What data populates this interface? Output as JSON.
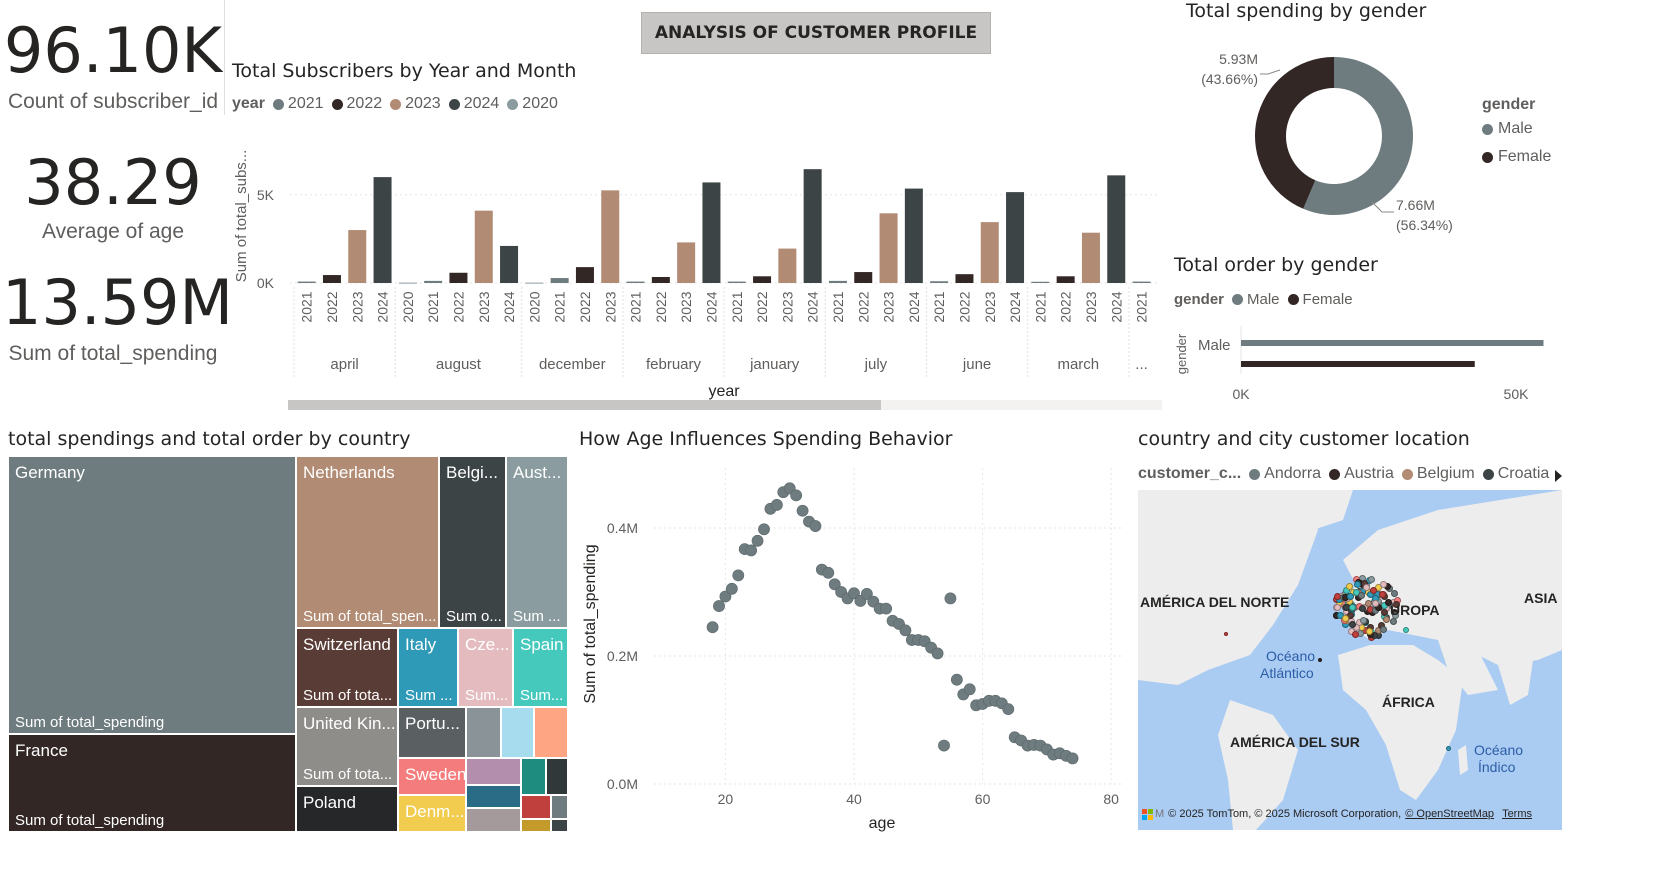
{
  "header": {
    "title": "ANALYSIS OF CUSTOMER PROFILE"
  },
  "kpis": [
    {
      "value": "96.10K",
      "label": "Count of subscriber_id"
    },
    {
      "value": "38.29",
      "label": "Average of age"
    },
    {
      "value": "13.59M",
      "label": "Sum of total_spending"
    }
  ],
  "colors": {
    "y2021": "#6e7b7f",
    "y2022": "#322725",
    "y2023": "#b18b73",
    "y2024": "#3d4446",
    "y2020": "#8a9ca0",
    "male": "#6e7b7f",
    "female": "#322725"
  },
  "subscribers_chart": {
    "title": "Total Subscribers by Year and Month",
    "legend_title": "year",
    "legend": [
      "2021",
      "2022",
      "2023",
      "2024",
      "2020"
    ],
    "ylabel": "Sum of total_subs...",
    "xlabel": "year",
    "yticks": [
      "5K",
      "0K"
    ],
    "chart_data": {
      "type": "bar",
      "ylim": [
        0,
        6800
      ],
      "groups": [
        {
          "month": "april",
          "bars": [
            {
              "year": "2021",
              "value": 80
            },
            {
              "year": "2022",
              "value": 450
            },
            {
              "year": "2023",
              "value": 3000
            },
            {
              "year": "2024",
              "value": 6000
            }
          ]
        },
        {
          "month": "august",
          "bars": [
            {
              "year": "2020",
              "value": 20
            },
            {
              "year": "2021",
              "value": 120
            },
            {
              "year": "2022",
              "value": 580
            },
            {
              "year": "2023",
              "value": 4100
            },
            {
              "year": "2024",
              "value": 2100
            }
          ]
        },
        {
          "month": "december",
          "bars": [
            {
              "year": "2020",
              "value": 20
            },
            {
              "year": "2021",
              "value": 280
            },
            {
              "year": "2022",
              "value": 900
            },
            {
              "year": "2023",
              "value": 5250
            }
          ]
        },
        {
          "month": "february",
          "bars": [
            {
              "year": "2021",
              "value": 80
            },
            {
              "year": "2022",
              "value": 340
            },
            {
              "year": "2023",
              "value": 2300
            },
            {
              "year": "2024",
              "value": 5700
            }
          ]
        },
        {
          "month": "january",
          "bars": [
            {
              "year": "2021",
              "value": 80
            },
            {
              "year": "2022",
              "value": 380
            },
            {
              "year": "2023",
              "value": 1950
            },
            {
              "year": "2024",
              "value": 6450
            }
          ]
        },
        {
          "month": "july",
          "bars": [
            {
              "year": "2021",
              "value": 120
            },
            {
              "year": "2022",
              "value": 620
            },
            {
              "year": "2023",
              "value": 3950
            },
            {
              "year": "2024",
              "value": 5350
            }
          ]
        },
        {
          "month": "june",
          "bars": [
            {
              "year": "2021",
              "value": 100
            },
            {
              "year": "2022",
              "value": 500
            },
            {
              "year": "2023",
              "value": 3450
            },
            {
              "year": "2024",
              "value": 5150
            }
          ]
        },
        {
          "month": "march",
          "bars": [
            {
              "year": "2021",
              "value": 70
            },
            {
              "year": "2022",
              "value": 380
            },
            {
              "year": "2023",
              "value": 2850
            },
            {
              "year": "2024",
              "value": 6100
            }
          ]
        },
        {
          "month": "...",
          "bars": [
            {
              "year": "2021",
              "value": 80
            }
          ]
        }
      ]
    }
  },
  "spending_gender": {
    "title": "Total spending by gender",
    "legend_title": "gender",
    "legend": [
      "Male",
      "Female"
    ],
    "chart_data": {
      "type": "pie",
      "slices": [
        {
          "name": "Male",
          "value": 7.66,
          "label": "7.66M",
          "pct": "(56.34%)"
        },
        {
          "name": "Female",
          "value": 5.93,
          "label": "5.93M",
          "pct": "(43.66%)"
        }
      ]
    }
  },
  "order_gender": {
    "title": "Total order by gender",
    "legend_title": "gender",
    "legend": [
      "Male",
      "Female"
    ],
    "ylabel": "gender",
    "category": "Male",
    "xticks": [
      "0K",
      "50K"
    ],
    "chart_data": {
      "type": "bar",
      "orientation": "horizontal",
      "xlim": [
        0,
        60000
      ],
      "series": [
        {
          "name": "Male",
          "value": 55000
        },
        {
          "name": "Female",
          "value": 42500
        }
      ]
    }
  },
  "treemap": {
    "title": "total spendings and total order by country",
    "tiles": [
      {
        "name": "Germany",
        "sub": "Sum of total_spending",
        "color": "#6e7b7f"
      },
      {
        "name": "France",
        "sub": "Sum of total_spending",
        "color": "#322725"
      },
      {
        "name": "Netherlands",
        "sub": "Sum of total_spen...",
        "color": "#b18b73"
      },
      {
        "name": "Belgi...",
        "sub": "Sum o...",
        "color": "#3d4446"
      },
      {
        "name": "Aust...",
        "sub": "Sum ...",
        "color": "#8a9ca0"
      },
      {
        "name": "Switzerland",
        "sub": "Sum of tota...",
        "color": "#5a3c36"
      },
      {
        "name": "Italy",
        "sub": "Sum ...",
        "color": "#2f99b8"
      },
      {
        "name": "Cze...",
        "sub": "Sum...",
        "color": "#e4bcbf"
      },
      {
        "name": "Spain",
        "sub": "Sum...",
        "color": "#46c9bd"
      },
      {
        "name": "United Kin...",
        "sub": "Sum of tota...",
        "color": "#8f8d8a"
      },
      {
        "name": "Portu...",
        "sub": "",
        "color": "#5a6062"
      },
      {
        "name": "Sweden",
        "sub": "",
        "color": "#f47c7c"
      },
      {
        "name": "Denm...",
        "sub": "",
        "color": "#f2cc4e"
      },
      {
        "name": "Poland",
        "sub": "",
        "color": "#252729"
      }
    ]
  },
  "scatter": {
    "title": "How Age Influences Spending Behavior",
    "ylabel": "Sum of total_spending",
    "xlabel": "age",
    "xticks": [
      "20",
      "40",
      "60",
      "80"
    ],
    "yticks": [
      "0.4M",
      "0.2M",
      "0.0M"
    ],
    "chart_data": {
      "type": "scatter",
      "xlim": [
        12,
        82
      ],
      "ylim": [
        0,
        0.5
      ],
      "points": [
        [
          18,
          0.245
        ],
        [
          19,
          0.278
        ],
        [
          20,
          0.293
        ],
        [
          21,
          0.305
        ],
        [
          22,
          0.326
        ],
        [
          23,
          0.367
        ],
        [
          24,
          0.365
        ],
        [
          25,
          0.38
        ],
        [
          26,
          0.398
        ],
        [
          27,
          0.43
        ],
        [
          28,
          0.436
        ],
        [
          29,
          0.456
        ],
        [
          30,
          0.462
        ],
        [
          31,
          0.451
        ],
        [
          32,
          0.427
        ],
        [
          33,
          0.41
        ],
        [
          34,
          0.403
        ],
        [
          35,
          0.335
        ],
        [
          36,
          0.33
        ],
        [
          37,
          0.312
        ],
        [
          38,
          0.3
        ],
        [
          39,
          0.29
        ],
        [
          40,
          0.298
        ],
        [
          41,
          0.286
        ],
        [
          42,
          0.297
        ],
        [
          43,
          0.285
        ],
        [
          44,
          0.274
        ],
        [
          45,
          0.274
        ],
        [
          46,
          0.255
        ],
        [
          47,
          0.25
        ],
        [
          48,
          0.24
        ],
        [
          49,
          0.225
        ],
        [
          50,
          0.225
        ],
        [
          51,
          0.223
        ],
        [
          52,
          0.213
        ],
        [
          53,
          0.204
        ],
        [
          54,
          0.06
        ],
        [
          55,
          0.29
        ],
        [
          56,
          0.163
        ],
        [
          57,
          0.14
        ],
        [
          58,
          0.148
        ],
        [
          59,
          0.123
        ],
        [
          60,
          0.125
        ],
        [
          61,
          0.13
        ],
        [
          62,
          0.13
        ],
        [
          63,
          0.126
        ],
        [
          64,
          0.117
        ],
        [
          65,
          0.073
        ],
        [
          66,
          0.068
        ],
        [
          67,
          0.06
        ],
        [
          68,
          0.061
        ],
        [
          69,
          0.06
        ],
        [
          70,
          0.054
        ],
        [
          71,
          0.046
        ],
        [
          72,
          0.048
        ],
        [
          73,
          0.044
        ],
        [
          74,
          0.04
        ]
      ]
    }
  },
  "map": {
    "title": "country and city customer location",
    "legend_title": "customer_c...",
    "legend": [
      {
        "name": "Andorra",
        "color": "#6e7b7f"
      },
      {
        "name": "Austria",
        "color": "#322725"
      },
      {
        "name": "Belgium",
        "color": "#b18b73"
      },
      {
        "name": "Croatia",
        "color": "#3d4446"
      }
    ],
    "labels": {
      "north_america": "AMÉRICA DEL NORTE",
      "europe": "UROPA",
      "asia": "ASIA",
      "ocean_atl_1": "Océano",
      "ocean_atl_2": "Atlántico",
      "africa": "ÁFRICA",
      "south_america": "AMÉRICA DEL SUR",
      "ocean_ind_1": "Océano",
      "ocean_ind_2": "Índico"
    },
    "attribution": {
      "logo_text": "M",
      "copyright": "© 2025 TomTom, © 2025 Microsoft Corporation,",
      "osm_link": "© OpenStreetMap",
      "terms_link": "Terms"
    }
  }
}
